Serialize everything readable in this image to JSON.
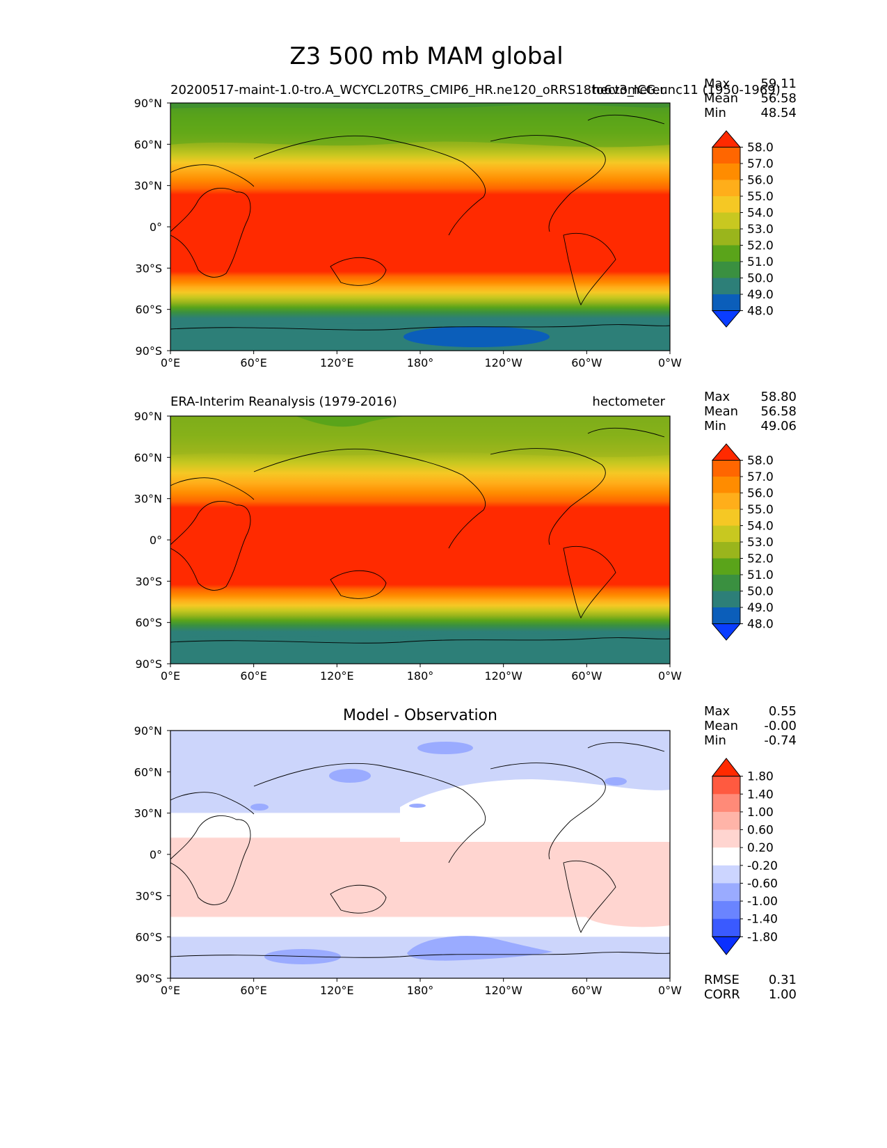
{
  "figure": {
    "title": "Z3 500 mb MAM global"
  },
  "chart_data": [
    {
      "type": "heatmap",
      "map": "global contour map (plate carree)",
      "title_left": "20200517-maint-1.0-tro.A_WCYCL20TRS_CMIP6_HR.ne120_oRRS18to6v3_ICG.unc11 (1950-1969)",
      "title_right": "hectometer",
      "stats": [
        {
          "label": "Max",
          "value": "59.11"
        },
        {
          "label": "Mean",
          "value": "56.58"
        },
        {
          "label": "Min",
          "value": "48.54"
        }
      ],
      "xticks": [
        "0°E",
        "60°E",
        "120°E",
        "180°",
        "120°W",
        "60°W",
        "0°W"
      ],
      "yticks": [
        "90°N",
        "60°N",
        "30°N",
        "0°",
        "30°S",
        "60°S",
        "90°S"
      ],
      "colorbar": {
        "levels": [
          "58.0",
          "57.0",
          "56.0",
          "55.0",
          "54.0",
          "53.0",
          "52.0",
          "51.0",
          "50.0",
          "49.0",
          "48.0"
        ],
        "colors": [
          "#ff2a00",
          "#ff6600",
          "#ff8c00",
          "#ffae1a",
          "#f5c824",
          "#c8c820",
          "#9ab51c",
          "#5aa41a",
          "#3a9040",
          "#2d7f78",
          "#0b5eba",
          "#0a3dff"
        ]
      },
      "latitude_bands": [
        {
          "lat": [
            75,
            90
          ],
          "value_range": "50-52"
        },
        {
          "lat": [
            60,
            75
          ],
          "value_range": "52-53"
        },
        {
          "lat": [
            45,
            60
          ],
          "value_range": "53-55"
        },
        {
          "lat": [
            27,
            45
          ],
          "value_range": "55-58"
        },
        {
          "lat": [
            -33,
            27
          ],
          "value_range": ">58"
        },
        {
          "lat": [
            -50,
            -33
          ],
          "value_range": "55-58"
        },
        {
          "lat": [
            -62,
            -50
          ],
          "value_range": "51-54"
        },
        {
          "lat": [
            -90,
            -62
          ],
          "value_range": "49-50"
        }
      ]
    },
    {
      "type": "heatmap",
      "map": "global contour map (plate carree)",
      "title_left": "ERA-Interim Reanalysis (1979-2016)",
      "title_right": "hectometer",
      "stats": [
        {
          "label": "Max",
          "value": "58.80"
        },
        {
          "label": "Mean",
          "value": "56.58"
        },
        {
          "label": "Min",
          "value": "49.06"
        }
      ],
      "xticks": [
        "0°E",
        "60°E",
        "120°E",
        "180°",
        "120°W",
        "60°W",
        "0°W"
      ],
      "yticks": [
        "90°N",
        "60°N",
        "30°N",
        "0°",
        "30°S",
        "60°S",
        "90°S"
      ],
      "colorbar": {
        "levels": [
          "58.0",
          "57.0",
          "56.0",
          "55.0",
          "54.0",
          "53.0",
          "52.0",
          "51.0",
          "50.0",
          "49.0",
          "48.0"
        ],
        "colors": [
          "#ff2a00",
          "#ff6600",
          "#ff8c00",
          "#ffae1a",
          "#f5c824",
          "#c8c820",
          "#9ab51c",
          "#5aa41a",
          "#3a9040",
          "#2d7f78",
          "#0b5eba",
          "#0a3dff"
        ]
      },
      "latitude_bands": [
        {
          "lat": [
            75,
            90
          ],
          "value_range": "51-52"
        },
        {
          "lat": [
            60,
            75
          ],
          "value_range": "52-53"
        },
        {
          "lat": [
            45,
            60
          ],
          "value_range": "53-55"
        },
        {
          "lat": [
            27,
            45
          ],
          "value_range": "55-58"
        },
        {
          "lat": [
            -33,
            27
          ],
          "value_range": ">58"
        },
        {
          "lat": [
            -50,
            -33
          ],
          "value_range": "55-58"
        },
        {
          "lat": [
            -62,
            -50
          ],
          "value_range": "51-54"
        },
        {
          "lat": [
            -90,
            -62
          ],
          "value_range": "49-50"
        }
      ]
    },
    {
      "type": "heatmap",
      "map": "global contour map (plate carree)",
      "title_center": "Model - Observation",
      "stats": [
        {
          "label": "Max",
          "value": "0.55"
        },
        {
          "label": "Mean",
          "value": "-0.00"
        },
        {
          "label": "Min",
          "value": "-0.74"
        }
      ],
      "footer_stats": [
        {
          "label": "RMSE",
          "value": "0.31"
        },
        {
          "label": "CORR",
          "value": "1.00"
        }
      ],
      "xticks": [
        "0°E",
        "60°E",
        "120°E",
        "180°",
        "120°W",
        "60°W",
        "0°W"
      ],
      "yticks": [
        "90°N",
        "60°N",
        "30°N",
        "0°",
        "30°S",
        "60°S",
        "90°S"
      ],
      "colorbar": {
        "levels": [
          "1.80",
          "1.40",
          "1.00",
          "0.60",
          "0.20",
          "-0.20",
          "-0.60",
          "-1.00",
          "-1.40",
          "-1.80"
        ],
        "colors": [
          "#ff2a00",
          "#ff5a40",
          "#ff8a78",
          "#ffb4a8",
          "#ffd5d0",
          "#ffffff",
          "#ccd5ff",
          "#9aabff",
          "#6a84ff",
          "#3a5aff",
          "#0a30ff"
        ]
      },
      "latitude_bands": [
        {
          "lat": [
            30,
            90
          ],
          "value_range": "-0.6 to -0.2"
        },
        {
          "lat": [
            12,
            30
          ],
          "value_range": "-0.2 to 0.2"
        },
        {
          "lat": [
            -45,
            12
          ],
          "value_range": "0.2 to 0.6"
        },
        {
          "lat": [
            -60,
            -45
          ],
          "value_range": "-0.2 to 0.2"
        },
        {
          "lat": [
            -90,
            -60
          ],
          "value_range": "-0.6 to -0.2"
        }
      ]
    }
  ]
}
